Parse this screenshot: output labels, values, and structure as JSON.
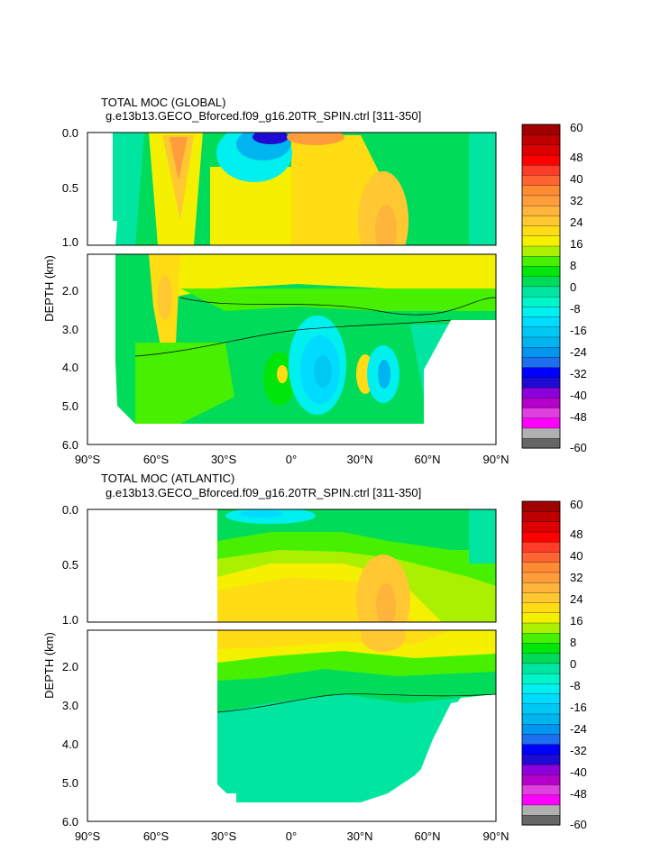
{
  "chart_data": [
    {
      "type": "heatmap",
      "title": "TOTAL MOC (GLOBAL)",
      "subtitle": "g.e13b13.GECO_Bforced.f09_g16.20TR_SPIN.ctrl [311-350]",
      "ylabel": "DEPTH (km)",
      "xlim": [
        -90,
        90
      ],
      "ylim": [
        6.0,
        0.0
      ],
      "x_ticks": [
        "90°S",
        "60°S",
        "30°S",
        "0°",
        "30°N",
        "60°N",
        "90°N"
      ],
      "y_ticks_upper": [
        "0.0",
        "0.5",
        "1.0"
      ],
      "y_ticks_lower": [
        "2.0",
        "3.0",
        "4.0",
        "5.0",
        "6.0"
      ],
      "colorbar_labels": [
        "60",
        "48",
        "40",
        "32",
        "24",
        "16",
        "8",
        "0",
        "-8",
        "-16",
        "-24",
        "-32",
        "-40",
        "-48",
        "-60"
      ],
      "features": [
        {
          "x": -50,
          "y": 0.4,
          "value": 28
        },
        {
          "x": -15,
          "y": 0.05,
          "value": -40
        },
        {
          "x": 10,
          "y": 0.05,
          "value": 30
        },
        {
          "x": 40,
          "y": 0.9,
          "value": 24
        },
        {
          "x": 15,
          "y": 4.2,
          "value": -16
        },
        {
          "x": 40,
          "y": 4.2,
          "value": -24
        }
      ]
    },
    {
      "type": "heatmap",
      "title": "TOTAL MOC (ATLANTIC)",
      "subtitle": "g.e13b13.GECO_Bforced.f09_g16.20TR_SPIN.ctrl [311-350]",
      "ylabel": "DEPTH (km)",
      "xlim": [
        -90,
        90
      ],
      "ylim": [
        6.0,
        0.0
      ],
      "x_ticks": [
        "90°S",
        "60°S",
        "30°S",
        "0°",
        "30°N",
        "60°N",
        "90°N"
      ],
      "y_ticks_upper": [
        "0.0",
        "0.5",
        "1.0"
      ],
      "y_ticks_lower": [
        "2.0",
        "3.0",
        "4.0",
        "5.0",
        "6.0"
      ],
      "colorbar_labels": [
        "60",
        "48",
        "40",
        "32",
        "24",
        "16",
        "8",
        "0",
        "-8",
        "-16",
        "-24",
        "-32",
        "-40",
        "-48",
        "-60"
      ],
      "features": [
        {
          "x": 40,
          "y": 0.9,
          "value": 24
        },
        {
          "x": 0,
          "y": 0.8,
          "value": 16
        },
        {
          "x": 0,
          "y": 4.2,
          "value": -4
        }
      ]
    }
  ],
  "colors": {
    "colorbar_levels": [
      "#666666",
      "#b0b0b0",
      "#ff00ff",
      "#e040e0",
      "#b400c8",
      "#8c00dc",
      "#1e0ad2",
      "#0000ff",
      "#1e6ef0",
      "#0096f0",
      "#00b4f0",
      "#00c8f5",
      "#00dcff",
      "#00f0f0",
      "#00f5c8",
      "#00e6a0",
      "#00dc5a",
      "#00e60a",
      "#46f000",
      "#aaf000",
      "#f5f000",
      "#ffdc14",
      "#ffc832",
      "#ffb43c",
      "#ff9c3c",
      "#ff8c32",
      "#ff6432",
      "#ff3c28",
      "#ff0000",
      "#dc0000",
      "#be0000",
      "#a00000"
    ]
  }
}
